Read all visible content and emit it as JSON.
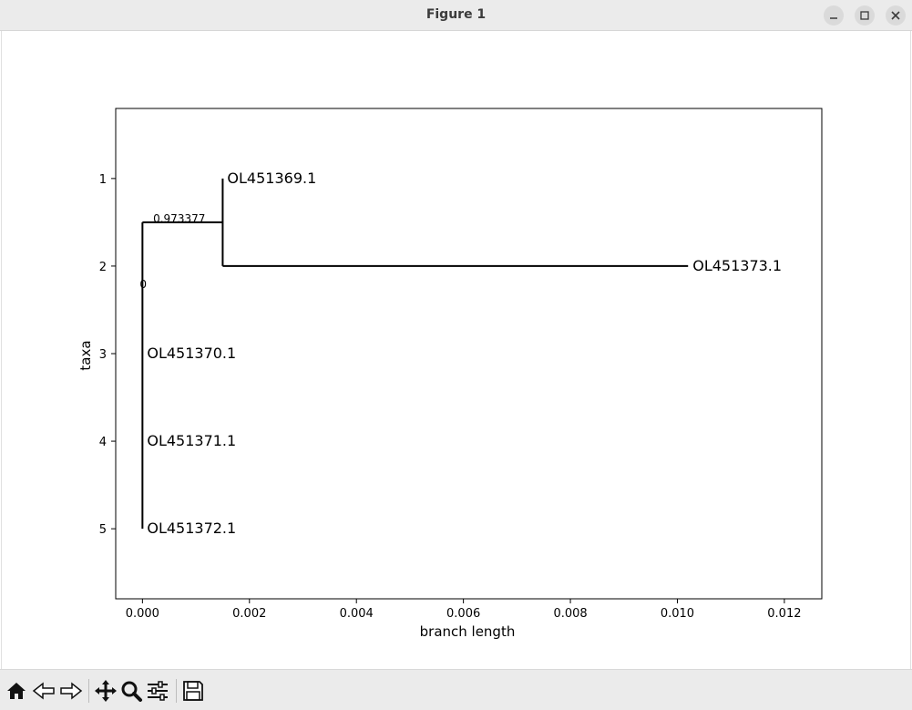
{
  "window": {
    "title": "Figure 1"
  },
  "toolbar": {
    "buttons": [
      {
        "name": "home-icon"
      },
      {
        "name": "back-icon"
      },
      {
        "name": "forward-icon"
      },
      {
        "name": "pan-icon"
      },
      {
        "name": "zoom-icon"
      },
      {
        "name": "configure-icon"
      },
      {
        "name": "save-icon"
      }
    ]
  },
  "chart_data": {
    "type": "tree",
    "title": "",
    "xlabel": "branch length",
    "ylabel": "taxa",
    "xlim": [
      -0.0005,
      0.0127
    ],
    "ylim": [
      5.8,
      0.2
    ],
    "xticks": [
      0.0,
      0.002,
      0.004,
      0.006,
      0.008,
      0.01,
      0.012
    ],
    "xtick_labels": [
      "0.000",
      "0.002",
      "0.004",
      "0.006",
      "0.008",
      "0.010",
      "0.012"
    ],
    "yticks": [
      1,
      2,
      3,
      4,
      5
    ],
    "ytick_labels": [
      "1",
      "2",
      "3",
      "4",
      "5"
    ],
    "leaves": [
      {
        "name": "OL451369.1",
        "x": 0.0015,
        "y": 1
      },
      {
        "name": "OL451373.1",
        "x": 0.0102,
        "y": 2
      },
      {
        "name": "OL451370.1",
        "x": 0.0,
        "y": 3
      },
      {
        "name": "OL451371.1",
        "x": 0.0,
        "y": 4
      },
      {
        "name": "OL451372.1",
        "x": 0.0,
        "y": 5
      }
    ],
    "segments": [
      [
        0.0,
        1.5,
        0.0,
        5.0
      ],
      [
        0.0,
        1.5,
        0.0015,
        1.5
      ],
      [
        0.0015,
        1.0,
        0.0015,
        2.0
      ],
      [
        0.0015,
        2.0,
        0.0102,
        2.0
      ]
    ],
    "node_labels": [
      {
        "text": "0.973377",
        "x": 0.0002,
        "y": 1.5
      },
      {
        "text": "0",
        "x": -5e-05,
        "y": 2.25
      }
    ],
    "grid": false
  }
}
